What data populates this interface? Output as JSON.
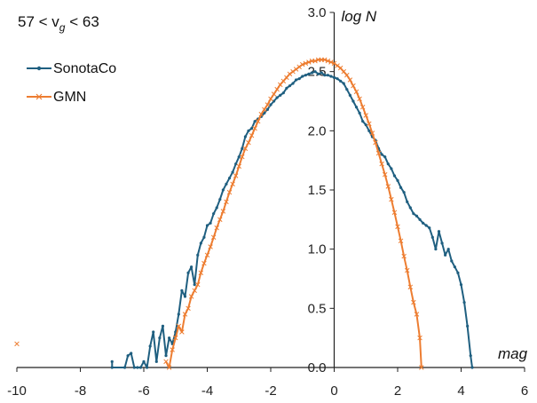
{
  "chart_data": {
    "type": "line",
    "annotation": {
      "prefix": "57 < v",
      "sub": "g",
      "suffix": " < 63"
    },
    "xlabel": "mag",
    "ylabel": "log N",
    "xlim": [
      -10,
      6
    ],
    "ylim": [
      0,
      3
    ],
    "x_ticks": [
      "-10",
      "-8",
      "-6",
      "-4",
      "-2",
      "0",
      "2",
      "4",
      "6"
    ],
    "y_ticks": [
      "0.0",
      "0.5",
      "1.0",
      "1.5",
      "2.0",
      "2.5",
      "3.0"
    ],
    "legend_position": "top-left",
    "colors": {
      "SonotaCo": "#1f5f80",
      "GMN": "#ed7d31"
    },
    "series": [
      {
        "name": "SonotaCo",
        "marker": "dot",
        "points": [
          [
            -7.0,
            0.05
          ],
          [
            -7.0,
            0.0
          ],
          [
            -6.6,
            0.0
          ],
          [
            -6.5,
            0.1
          ],
          [
            -6.4,
            0.12
          ],
          [
            -6.3,
            0.0
          ],
          [
            -6.2,
            0.0
          ],
          [
            -6.1,
            0.0
          ],
          [
            -6.0,
            0.05
          ],
          [
            -5.9,
            0.0
          ],
          [
            -5.8,
            0.18
          ],
          [
            -5.7,
            0.3
          ],
          [
            -5.6,
            0.05
          ],
          [
            -5.5,
            0.25
          ],
          [
            -5.4,
            0.35
          ],
          [
            -5.3,
            0.1
          ],
          [
            -5.2,
            0.25
          ],
          [
            -5.1,
            0.2
          ],
          [
            -5.0,
            0.3
          ],
          [
            -4.9,
            0.45
          ],
          [
            -4.8,
            0.65
          ],
          [
            -4.7,
            0.6
          ],
          [
            -4.6,
            0.8
          ],
          [
            -4.5,
            0.85
          ],
          [
            -4.4,
            0.7
          ],
          [
            -4.3,
            0.95
          ],
          [
            -4.2,
            1.05
          ],
          [
            -4.1,
            1.1
          ],
          [
            -4.0,
            1.2
          ],
          [
            -3.9,
            1.22
          ],
          [
            -3.8,
            1.3
          ],
          [
            -3.7,
            1.35
          ],
          [
            -3.6,
            1.42
          ],
          [
            -3.5,
            1.5
          ],
          [
            -3.4,
            1.55
          ],
          [
            -3.3,
            1.6
          ],
          [
            -3.2,
            1.65
          ],
          [
            -3.1,
            1.72
          ],
          [
            -3.0,
            1.78
          ],
          [
            -2.9,
            1.85
          ],
          [
            -2.8,
            1.95
          ],
          [
            -2.7,
            2.0
          ],
          [
            -2.6,
            2.02
          ],
          [
            -2.5,
            2.08
          ],
          [
            -2.4,
            2.1
          ],
          [
            -2.3,
            2.12
          ],
          [
            -2.2,
            2.15
          ],
          [
            -2.1,
            2.18
          ],
          [
            -2.0,
            2.22
          ],
          [
            -1.9,
            2.25
          ],
          [
            -1.8,
            2.28
          ],
          [
            -1.7,
            2.3
          ],
          [
            -1.6,
            2.32
          ],
          [
            -1.5,
            2.36
          ],
          [
            -1.4,
            2.38
          ],
          [
            -1.3,
            2.4
          ],
          [
            -1.2,
            2.43
          ],
          [
            -1.1,
            2.44
          ],
          [
            -1.0,
            2.46
          ],
          [
            -0.9,
            2.47
          ],
          [
            -0.8,
            2.48
          ],
          [
            -0.7,
            2.49
          ],
          [
            -0.6,
            2.5
          ],
          [
            -0.5,
            2.48
          ],
          [
            -0.4,
            2.49
          ],
          [
            -0.3,
            2.47
          ],
          [
            -0.2,
            2.47
          ],
          [
            -0.1,
            2.46
          ],
          [
            0.0,
            2.45
          ],
          [
            0.1,
            2.44
          ],
          [
            0.2,
            2.42
          ],
          [
            0.3,
            2.4
          ],
          [
            0.4,
            2.35
          ],
          [
            0.5,
            2.3
          ],
          [
            0.6,
            2.25
          ],
          [
            0.7,
            2.2
          ],
          [
            0.8,
            2.15
          ],
          [
            0.9,
            2.08
          ],
          [
            1.0,
            2.05
          ],
          [
            1.1,
            2.0
          ],
          [
            1.2,
            1.95
          ],
          [
            1.3,
            1.92
          ],
          [
            1.4,
            1.85
          ],
          [
            1.5,
            1.8
          ],
          [
            1.6,
            1.78
          ],
          [
            1.7,
            1.72
          ],
          [
            1.8,
            1.68
          ],
          [
            1.9,
            1.62
          ],
          [
            2.0,
            1.58
          ],
          [
            2.1,
            1.52
          ],
          [
            2.2,
            1.48
          ],
          [
            2.3,
            1.4
          ],
          [
            2.4,
            1.35
          ],
          [
            2.5,
            1.3
          ],
          [
            2.6,
            1.28
          ],
          [
            2.7,
            1.25
          ],
          [
            2.8,
            1.22
          ],
          [
            2.9,
            1.2
          ],
          [
            3.0,
            1.18
          ],
          [
            3.1,
            1.1
          ],
          [
            3.2,
            1.0
          ],
          [
            3.3,
            1.15
          ],
          [
            3.4,
            1.05
          ],
          [
            3.5,
            0.95
          ],
          [
            3.6,
            1.0
          ],
          [
            3.7,
            0.9
          ],
          [
            3.8,
            0.85
          ],
          [
            3.9,
            0.8
          ],
          [
            4.0,
            0.7
          ],
          [
            4.1,
            0.55
          ],
          [
            4.2,
            0.35
          ],
          [
            4.3,
            0.1
          ],
          [
            4.35,
            0.0
          ]
        ]
      },
      {
        "name": "GMN",
        "marker": "x",
        "points": [
          [
            -10.0,
            0.2
          ],
          [
            -5.3,
            0.05
          ],
          [
            -5.2,
            0.0
          ],
          [
            -5.1,
            0.15
          ],
          [
            -5.0,
            0.25
          ],
          [
            -4.9,
            0.35
          ],
          [
            -4.8,
            0.3
          ],
          [
            -4.7,
            0.45
          ],
          [
            -4.6,
            0.5
          ],
          [
            -4.5,
            0.6
          ],
          [
            -4.4,
            0.65
          ],
          [
            -4.3,
            0.7
          ],
          [
            -4.2,
            0.8
          ],
          [
            -4.1,
            0.88
          ],
          [
            -4.0,
            0.95
          ],
          [
            -3.9,
            1.02
          ],
          [
            -3.8,
            1.1
          ],
          [
            -3.7,
            1.18
          ],
          [
            -3.6,
            1.25
          ],
          [
            -3.5,
            1.32
          ],
          [
            -3.4,
            1.4
          ],
          [
            -3.3,
            1.48
          ],
          [
            -3.2,
            1.55
          ],
          [
            -3.1,
            1.62
          ],
          [
            -3.0,
            1.7
          ],
          [
            -2.9,
            1.78
          ],
          [
            -2.8,
            1.85
          ],
          [
            -2.7,
            1.9
          ],
          [
            -2.6,
            1.96
          ],
          [
            -2.5,
            2.02
          ],
          [
            -2.4,
            2.08
          ],
          [
            -2.3,
            2.14
          ],
          [
            -2.2,
            2.18
          ],
          [
            -2.1,
            2.22
          ],
          [
            -2.0,
            2.27
          ],
          [
            -1.9,
            2.31
          ],
          [
            -1.8,
            2.35
          ],
          [
            -1.7,
            2.39
          ],
          [
            -1.6,
            2.42
          ],
          [
            -1.5,
            2.45
          ],
          [
            -1.4,
            2.48
          ],
          [
            -1.3,
            2.5
          ],
          [
            -1.2,
            2.52
          ],
          [
            -1.1,
            2.54
          ],
          [
            -1.0,
            2.56
          ],
          [
            -0.9,
            2.57
          ],
          [
            -0.8,
            2.58
          ],
          [
            -0.7,
            2.59
          ],
          [
            -0.6,
            2.59
          ],
          [
            -0.5,
            2.6
          ],
          [
            -0.4,
            2.6
          ],
          [
            -0.3,
            2.6
          ],
          [
            -0.2,
            2.59
          ],
          [
            -0.1,
            2.58
          ],
          [
            0.0,
            2.57
          ],
          [
            0.1,
            2.55
          ],
          [
            0.2,
            2.53
          ],
          [
            0.3,
            2.5
          ],
          [
            0.4,
            2.47
          ],
          [
            0.5,
            2.43
          ],
          [
            0.6,
            2.38
          ],
          [
            0.7,
            2.33
          ],
          [
            0.8,
            2.27
          ],
          [
            0.9,
            2.2
          ],
          [
            1.0,
            2.13
          ],
          [
            1.1,
            2.06
          ],
          [
            1.2,
            1.98
          ],
          [
            1.3,
            1.9
          ],
          [
            1.4,
            1.81
          ],
          [
            1.5,
            1.72
          ],
          [
            1.6,
            1.63
          ],
          [
            1.7,
            1.53
          ],
          [
            1.8,
            1.42
          ],
          [
            1.9,
            1.31
          ],
          [
            2.0,
            1.19
          ],
          [
            2.1,
            1.07
          ],
          [
            2.2,
            0.94
          ],
          [
            2.3,
            0.82
          ],
          [
            2.4,
            0.68
          ],
          [
            2.5,
            0.55
          ],
          [
            2.6,
            0.45
          ],
          [
            2.7,
            0.25
          ],
          [
            2.75,
            0.0
          ]
        ]
      }
    ]
  }
}
